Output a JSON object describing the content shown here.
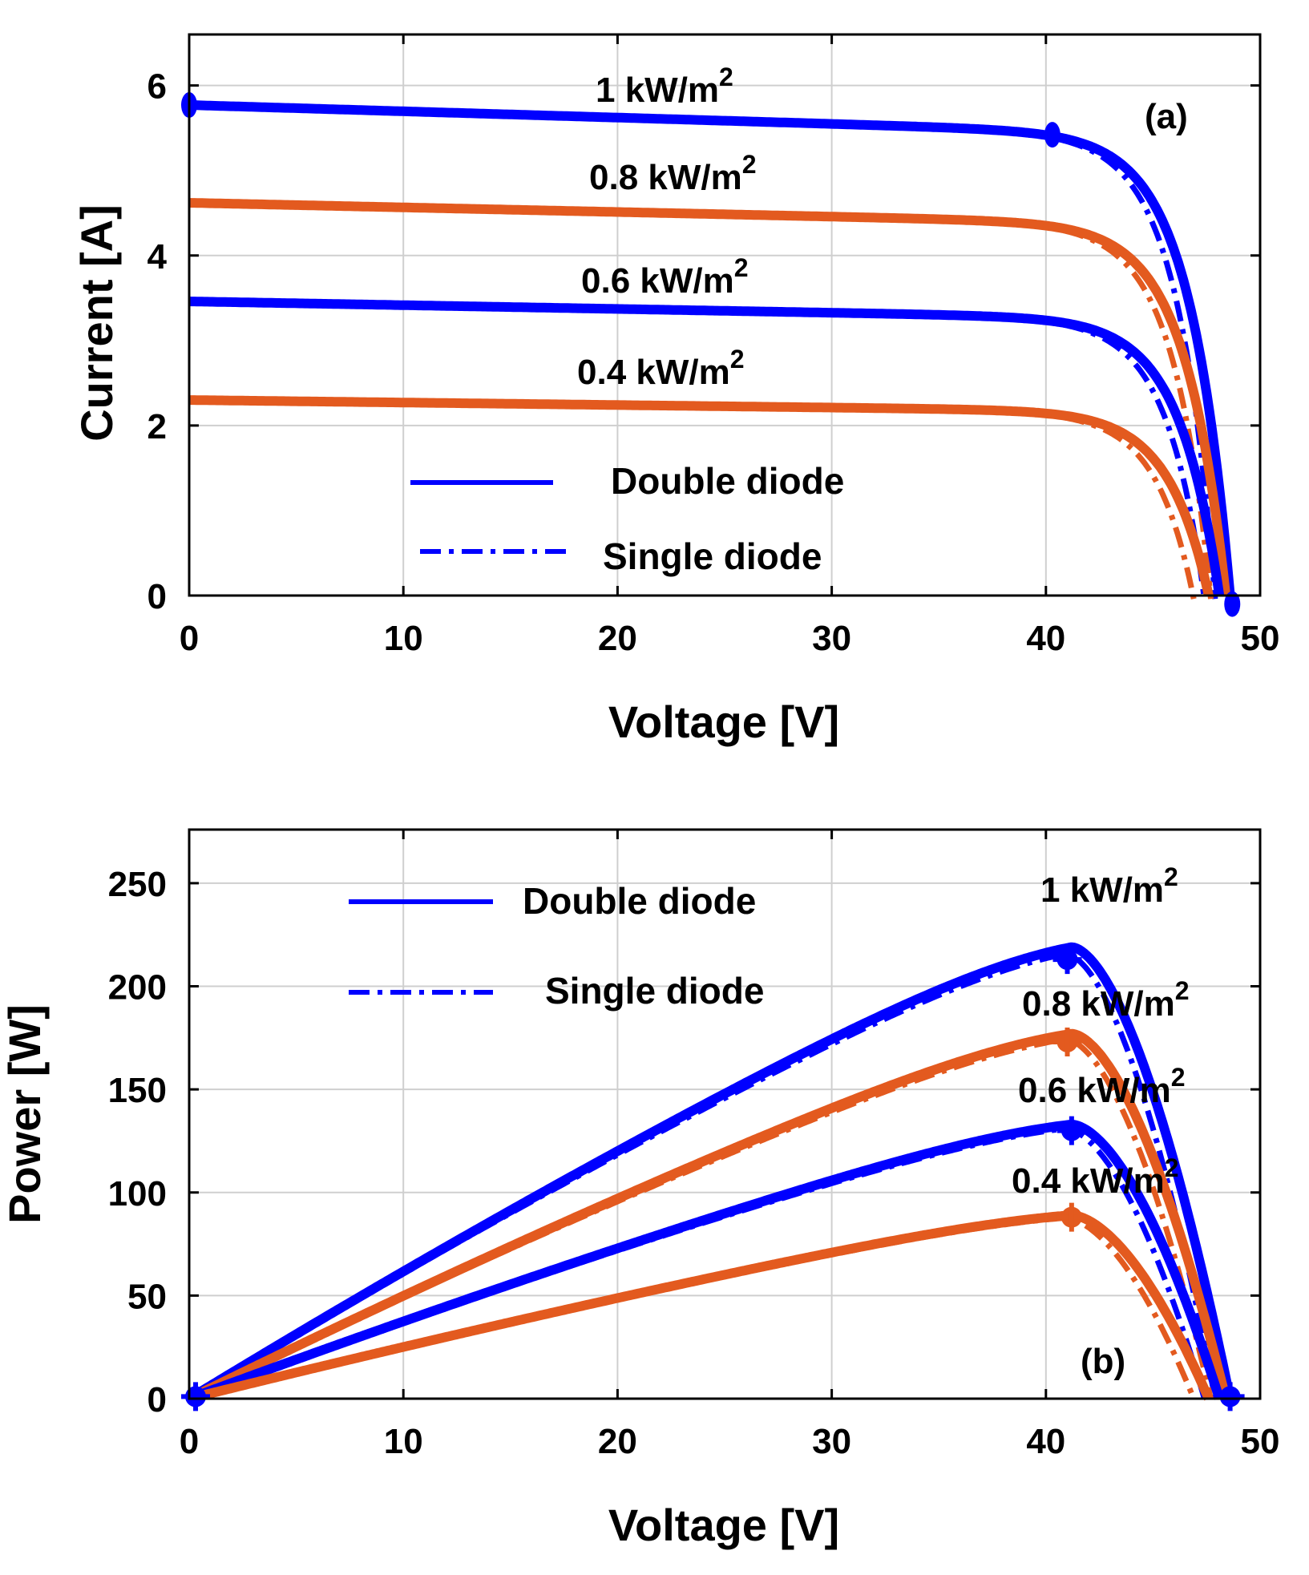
{
  "chart_data": [
    {
      "type": "line",
      "panel": "(a)",
      "xlabel": "Voltage [V]",
      "ylabel": "Current [A]",
      "xlim": [
        0,
        50
      ],
      "ylim": [
        0,
        6.6
      ],
      "xticks": [
        0,
        10,
        20,
        30,
        40,
        50
      ],
      "yticks": [
        0,
        2,
        4,
        6
      ],
      "grid": true,
      "legend": {
        "placement": "bottom-center",
        "entries": [
          {
            "label": "Double diode",
            "style": "solid",
            "color": "#0000ff"
          },
          {
            "label": "Single diode",
            "style": "dash-dot",
            "color": "#0000ff"
          }
        ]
      },
      "series": [
        {
          "irradiance": "1 kW/m",
          "sup": "2",
          "color": "#0000ff",
          "isc": 5.77,
          "vmp": 40.6,
          "imp": 5.4,
          "voc": 48.6,
          "drop": 0.3,
          "single_offset": 0.35
        },
        {
          "irradiance": "0.8 kW/m",
          "sup": "2",
          "color": "#e35a1f",
          "isc": 4.62,
          "vmp": 40.6,
          "imp": 4.38,
          "voc": 48.4,
          "drop": 0.22,
          "single_offset": 0.35
        },
        {
          "irradiance": "0.6 kW/m",
          "sup": "2",
          "color": "#0000ff",
          "isc": 3.46,
          "vmp": 40.6,
          "imp": 3.25,
          "voc": 48.1,
          "drop": 0.18,
          "single_offset": 0.35
        },
        {
          "irradiance": "0.4 kW/m",
          "sup": "2",
          "color": "#e35a1f",
          "isc": 2.3,
          "vmp": 40.6,
          "imp": 2.15,
          "voc": 47.6,
          "drop": 0.12,
          "single_offset": 0.35
        }
      ],
      "markers": [
        {
          "x": 0,
          "y": 5.77
        },
        {
          "x": 40.3,
          "y": 5.42
        },
        {
          "x": 48.7,
          "y": -0.1
        }
      ]
    },
    {
      "type": "line",
      "panel": "(b)",
      "xlabel": "Voltage [V]",
      "ylabel": "Power [W]",
      "xlim": [
        0,
        50
      ],
      "ylim": [
        0,
        276
      ],
      "xticks": [
        0,
        10,
        20,
        30,
        40,
        50
      ],
      "yticks": [
        0,
        50,
        100,
        150,
        200,
        250
      ],
      "grid": true,
      "legend": {
        "placement": "top-left",
        "entries": [
          {
            "label": "Double diode",
            "style": "solid",
            "color": "#0000ff"
          },
          {
            "label": "Single diode",
            "style": "dash-dot",
            "color": "#0000ff"
          }
        ]
      },
      "series": [
        {
          "irradiance": "1 kW/m",
          "sup": "2",
          "color": "#0000ff",
          "vmp": 41.2,
          "pmp": 219,
          "voc": 48.6,
          "single_offset": 0.35
        },
        {
          "irradiance": "0.8 kW/m",
          "sup": "2",
          "color": "#e35a1f",
          "vmp": 41.2,
          "pmp": 177,
          "voc": 48.4,
          "single_offset": 0.35
        },
        {
          "irradiance": "0.6 kW/m",
          "sup": "2",
          "color": "#0000ff",
          "vmp": 41.2,
          "pmp": 133,
          "voc": 48.1,
          "single_offset": 0.35
        },
        {
          "irradiance": "0.4 kW/m",
          "sup": "2",
          "color": "#e35a1f",
          "vmp": 41.2,
          "pmp": 89,
          "voc": 47.6,
          "single_offset": 0.35
        }
      ],
      "markers": [
        {
          "x": 0.3,
          "y": 1,
          "color": "#0000ff"
        },
        {
          "x": 41.0,
          "y": 213,
          "color": "#0000ff"
        },
        {
          "x": 41.0,
          "y": 173,
          "color": "#e35a1f"
        },
        {
          "x": 41.2,
          "y": 130,
          "color": "#0000ff"
        },
        {
          "x": 41.2,
          "y": 88,
          "color": "#e35a1f"
        },
        {
          "x": 48.6,
          "y": 1,
          "color": "#0000ff"
        }
      ]
    }
  ]
}
